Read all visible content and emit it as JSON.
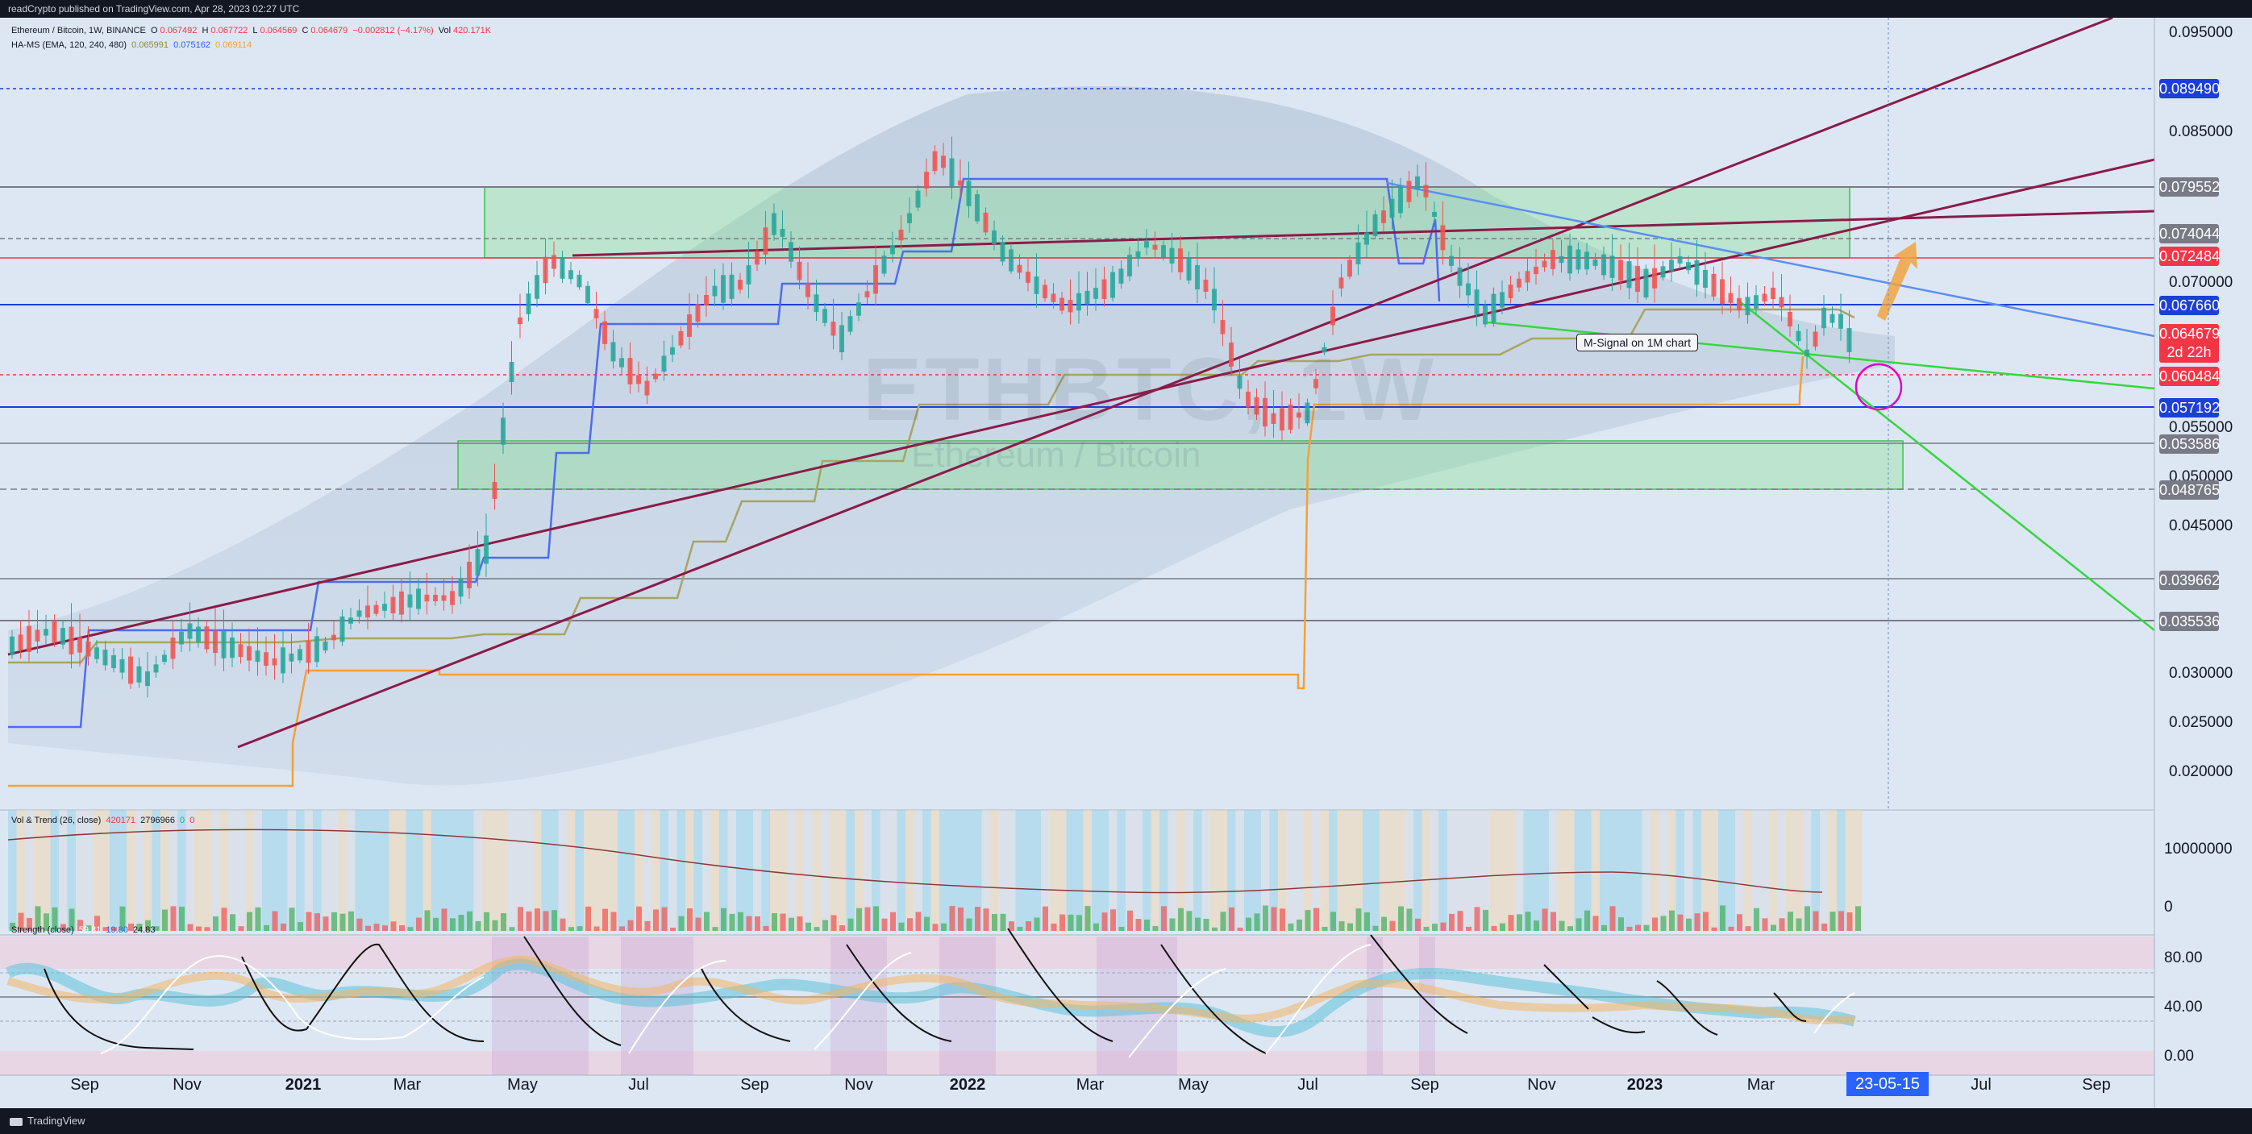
{
  "header": {
    "published": "readCrypto published on TradingView.com, Apr 28, 2023 02:27 UTC"
  },
  "footer": {
    "brand": "TradingView"
  },
  "legend": {
    "symbol": "Ethereum / Bitcoin, 1W, BINANCE",
    "o_label": "O",
    "o": "0.067492",
    "h_label": "H",
    "h": "0.067722",
    "l_label": "L",
    "l": "0.064569",
    "c_label": "C",
    "c": "0.064679",
    "change": "−0.002812 (−4.17%)",
    "vol_label": "Vol",
    "vol": "420.171K",
    "hams_label": "HA-MS (EMA, 120, 240, 480)",
    "hams_1": "0.065991",
    "hams_2": "0.075162",
    "hams_3": "0.069114",
    "voltrend_label": "Vol & Trend (26, close)",
    "voltrend_1": "420171",
    "voltrend_2": "2796966",
    "voltrend_3": "0",
    "voltrend_4": "0",
    "strength_label": "Strength (close)",
    "strength_1": "59.81",
    "strength_2": "19.80",
    "strength_3": "24.83"
  },
  "watermark": {
    "ticker": "ETHBTC, 1W",
    "name": "Ethereum / Bitcoin"
  },
  "annotation": {
    "text": "M-Signal on 1M chart"
  },
  "price_axis": {
    "ticks": [
      "0.095000",
      "0.085000",
      "0.070000",
      "0.055000",
      "0.050000",
      "0.045000",
      "0.030000",
      "0.025000",
      "0.020000"
    ],
    "boxes": [
      {
        "label": "0.089490",
        "bg": "#1c3fd8"
      },
      {
        "label": "0.079552",
        "bg": "#787b86"
      },
      {
        "label": "0.074044",
        "bg": "#787b86"
      },
      {
        "label": "0.072484",
        "bg": "#f23645"
      },
      {
        "label": "0.067660",
        "bg": "#1c3fd8"
      },
      {
        "label": "0.064679",
        "bg": "#f23645",
        "sub": "2d 22h"
      },
      {
        "label": "0.060484",
        "bg": "#f23645"
      },
      {
        "label": "0.057192",
        "bg": "#1c3fd8"
      },
      {
        "label": "0.053586",
        "bg": "#787b86"
      },
      {
        "label": "0.048765",
        "bg": "#787b86"
      },
      {
        "label": "0.039662",
        "bg": "#787b86"
      },
      {
        "label": "0.035536",
        "bg": "#787b86"
      }
    ]
  },
  "volume_axis": {
    "ticks": [
      "10000000",
      "0"
    ]
  },
  "strength_axis": {
    "ticks": [
      "80.00",
      "40.00",
      "0.00"
    ]
  },
  "time_axis": {
    "ticks": [
      "Sep",
      "Nov",
      "2021",
      "Mar",
      "May",
      "Jul",
      "Sep",
      "Nov",
      "2022",
      "Mar",
      "May",
      "Jul",
      "Sep",
      "Nov",
      "2023",
      "Mar",
      "Jul",
      "Sep"
    ],
    "crosshair": "23-05-15"
  },
  "colors": {
    "up": "#26a69a",
    "down": "#ef5350",
    "bg": "#dfe8f3"
  }
}
